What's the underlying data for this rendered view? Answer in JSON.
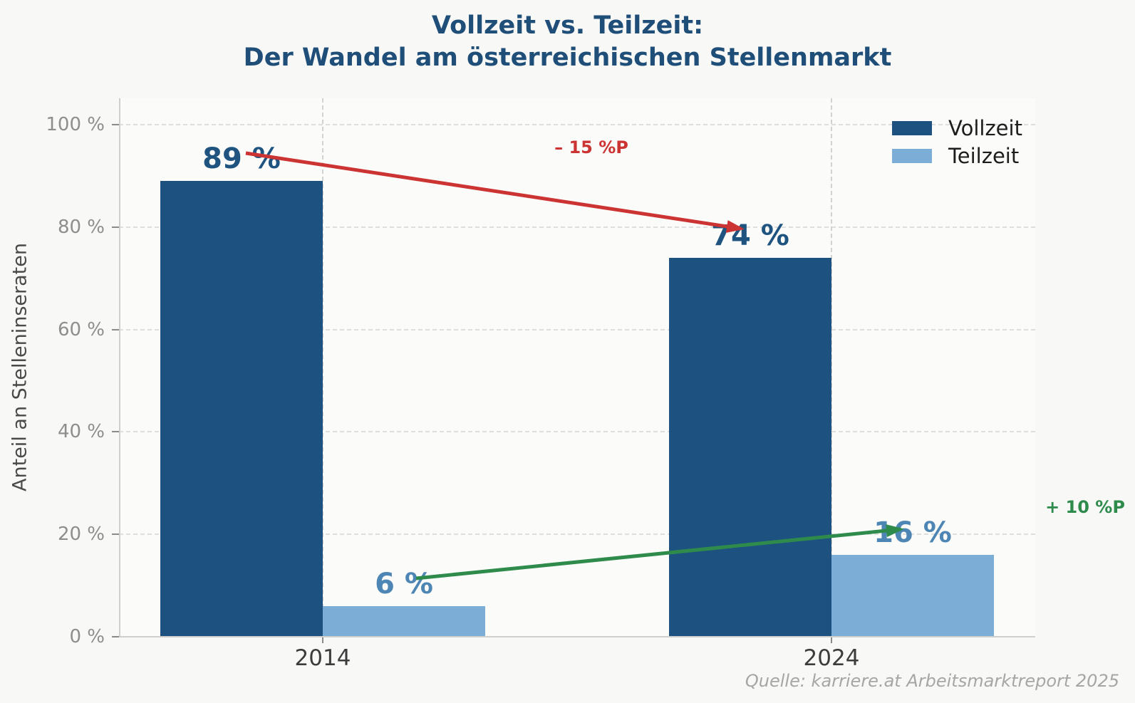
{
  "title": {
    "lines": [
      "Vollzeit vs. Teilzeit:",
      "Der Wandel am österreichischen Stellenmarkt"
    ]
  },
  "source": "Quelle: karriere.at Arbeitsmarktreport 2025",
  "chart_data": {
    "type": "bar",
    "categories": [
      "2014",
      "2024"
    ],
    "series": [
      {
        "name": "Vollzeit",
        "values": [
          89,
          74
        ],
        "value_labels": [
          "89 %",
          "74 %"
        ],
        "color": "#1d517f",
        "label_color": "#1f5480"
      },
      {
        "name": "Teilzeit",
        "values": [
          6,
          16
        ],
        "value_labels": [
          "6 %",
          "16 %"
        ],
        "color": "#7cadd6",
        "label_color": "#4d86b4"
      }
    ],
    "ylabel": "Anteil an Stelleninseraten",
    "xlabel": "",
    "y_ticks": [
      0,
      20,
      40,
      60,
      80,
      100
    ],
    "y_tick_labels": [
      "0 %",
      "20 %",
      "40 %",
      "60 %",
      "80 %",
      "100 %"
    ],
    "ylim": [
      0,
      105
    ],
    "grid": "dashed",
    "legend_position": "top-right",
    "annotations": [
      {
        "text": "– 15 %P",
        "color": "#cc3333",
        "series": "Vollzeit",
        "change": -15
      },
      {
        "text": "+ 10 %P",
        "color": "#2e8b4c",
        "series": "Teilzeit",
        "change": 10
      }
    ]
  }
}
